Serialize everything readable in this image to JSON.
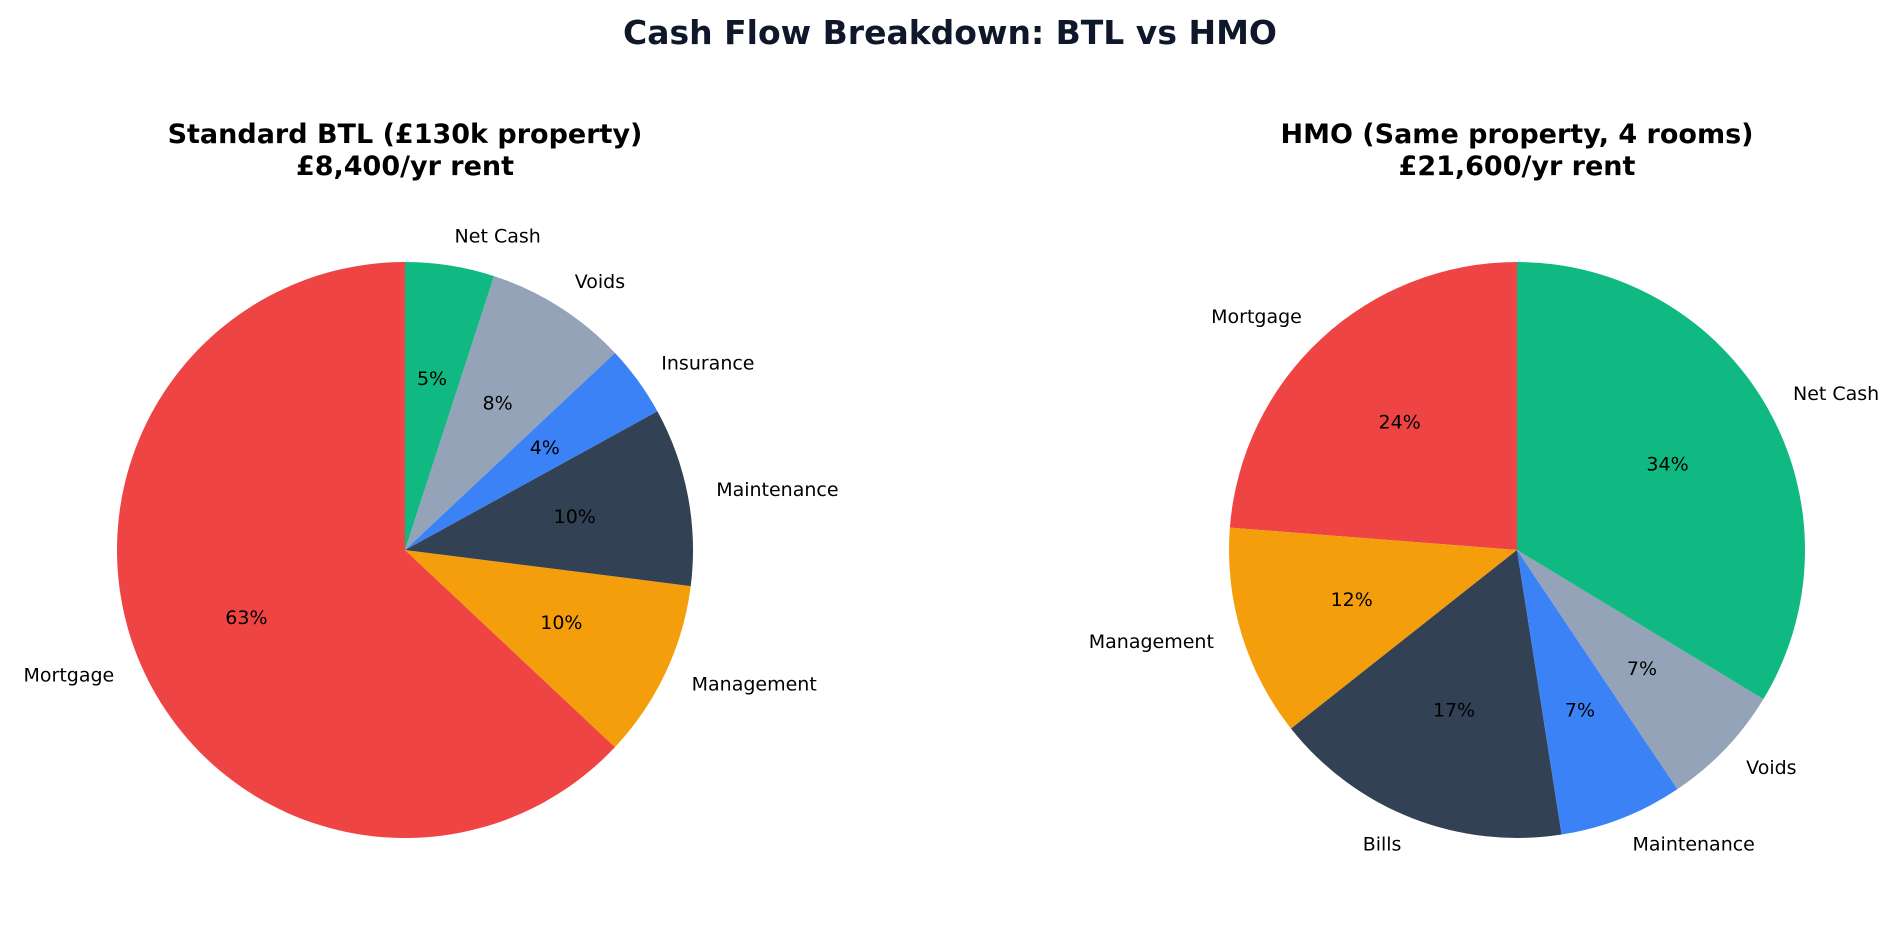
{
  "figure_title": "Cash Flow Breakdown: BTL vs HMO",
  "chart_data": [
    {
      "type": "pie",
      "title": "Standard BTL (£130k property)",
      "subtitle": "£8,400/yr rent",
      "start_angle_deg": 90,
      "direction": "clockwise-from-top reversed (counterclockwise listing)",
      "slices": [
        {
          "label": "Mortgage",
          "value": 63,
          "pct_label": "63%",
          "color": "#ef4444"
        },
        {
          "label": "Management",
          "value": 10,
          "pct_label": "10%",
          "color": "#f59e0b"
        },
        {
          "label": "Maintenance",
          "value": 10,
          "pct_label": "10%",
          "color": "#334155"
        },
        {
          "label": "Insurance",
          "value": 4,
          "pct_label": "4%",
          "color": "#3b82f6"
        },
        {
          "label": "Voids",
          "value": 8,
          "pct_label": "8%",
          "color": "#94a3b8"
        },
        {
          "label": "Net Cash",
          "value": 5,
          "pct_label": "5%",
          "color": "#10b981"
        }
      ]
    },
    {
      "type": "pie",
      "title": "HMO (Same property, 4 rooms)",
      "subtitle": "£21,600/yr rent",
      "start_angle_deg": 90,
      "slices": [
        {
          "label": "Mortgage",
          "value": 24,
          "pct_label": "24%",
          "color": "#ef4444"
        },
        {
          "label": "Management",
          "value": 12,
          "pct_label": "12%",
          "color": "#f59e0b"
        },
        {
          "label": "Bills",
          "value": 17,
          "pct_label": "17%",
          "color": "#334155"
        },
        {
          "label": "Maintenance",
          "value": 7,
          "pct_label": "7%",
          "color": "#3b82f6"
        },
        {
          "label": "Voids",
          "value": 7,
          "pct_label": "7%",
          "color": "#94a3b8"
        },
        {
          "label": "Net Cash",
          "value": 34,
          "pct_label": "34%",
          "color": "#10b981"
        }
      ]
    }
  ]
}
